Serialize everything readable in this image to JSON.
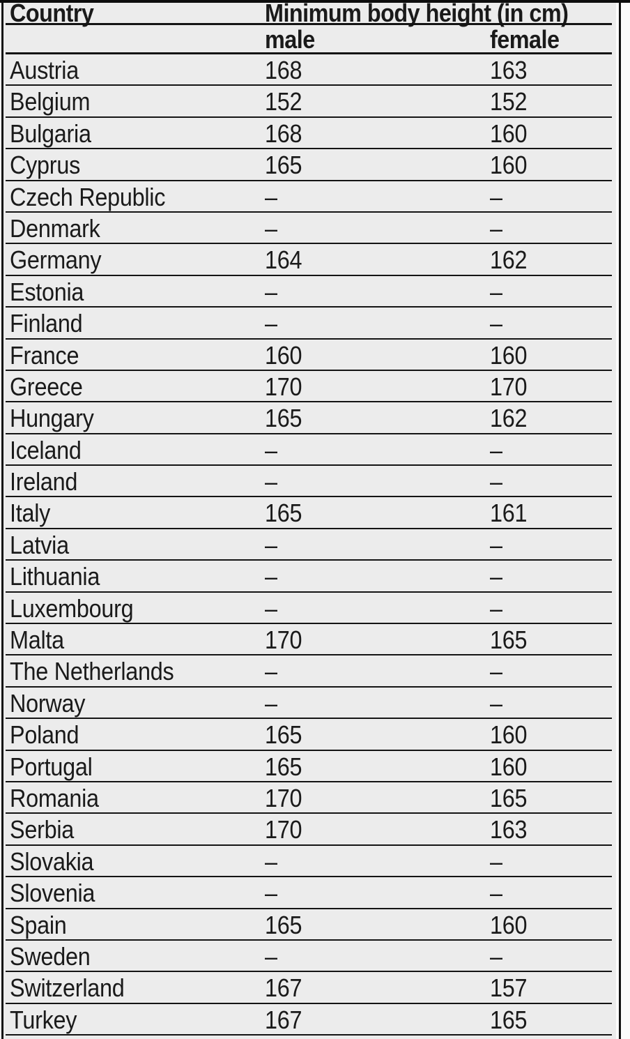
{
  "colors": {
    "table_background": "#ececec",
    "page_background": "#fbfbfb",
    "rule_lines": "#141414",
    "text": "#1a1a1a"
  },
  "table": {
    "header": {
      "country": "Country",
      "group": "Minimum body height (in cm)",
      "male": "male",
      "female": "female"
    },
    "missing_value_symbol": "–",
    "rows": [
      {
        "country": "Austria",
        "male": "168",
        "female": "163"
      },
      {
        "country": "Belgium",
        "male": "152",
        "female": "152"
      },
      {
        "country": "Bulgaria",
        "male": "168",
        "female": "160"
      },
      {
        "country": "Cyprus",
        "male": "165",
        "female": "160"
      },
      {
        "country": "Czech Republic",
        "male": "–",
        "female": "–"
      },
      {
        "country": "Denmark",
        "male": "–",
        "female": "–"
      },
      {
        "country": "Germany",
        "male": "164",
        "female": "162"
      },
      {
        "country": "Estonia",
        "male": "–",
        "female": "–"
      },
      {
        "country": "Finland",
        "male": "–",
        "female": "–"
      },
      {
        "country": "France",
        "male": "160",
        "female": "160"
      },
      {
        "country": "Greece",
        "male": "170",
        "female": "170"
      },
      {
        "country": "Hungary",
        "male": "165",
        "female": "162"
      },
      {
        "country": "Iceland",
        "male": "–",
        "female": "–"
      },
      {
        "country": "Ireland",
        "male": "–",
        "female": "–"
      },
      {
        "country": "Italy",
        "male": "165",
        "female": "161"
      },
      {
        "country": "Latvia",
        "male": "–",
        "female": "–"
      },
      {
        "country": "Lithuania",
        "male": "–",
        "female": "–"
      },
      {
        "country": "Luxembourg",
        "male": "–",
        "female": "–"
      },
      {
        "country": "Malta",
        "male": "170",
        "female": "165"
      },
      {
        "country": "The Netherlands",
        "male": "–",
        "female": "–"
      },
      {
        "country": "Norway",
        "male": "–",
        "female": "–"
      },
      {
        "country": "Poland",
        "male": "165",
        "female": "160"
      },
      {
        "country": "Portugal",
        "male": "165",
        "female": "160"
      },
      {
        "country": "Romania",
        "male": "170",
        "female": "165"
      },
      {
        "country": "Serbia",
        "male": "170",
        "female": "163"
      },
      {
        "country": "Slovakia",
        "male": "–",
        "female": "–"
      },
      {
        "country": "Slovenia",
        "male": "–",
        "female": "–"
      },
      {
        "country": "Spain",
        "male": "165",
        "female": "160"
      },
      {
        "country": "Sweden",
        "male": "–",
        "female": "–"
      },
      {
        "country": "Switzerland",
        "male": "167",
        "female": "157"
      },
      {
        "country": "Turkey",
        "male": "167",
        "female": "165"
      }
    ]
  }
}
